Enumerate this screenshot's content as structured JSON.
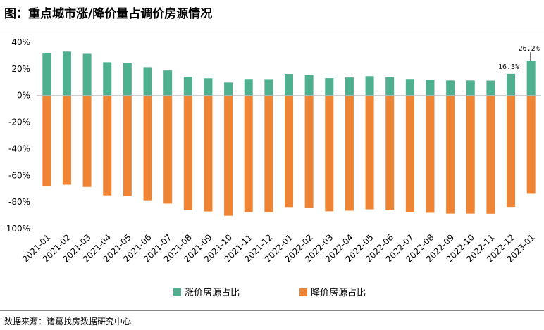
{
  "header": {
    "title": "图：重点城市涨/降价量占调价房源情况"
  },
  "footer": {
    "source": "数据来源：诸葛找房数据研究中心"
  },
  "chart_data": {
    "type": "bar",
    "stacked": "diverging",
    "categories": [
      "2021-01",
      "2021-02",
      "2021-03",
      "2021-04",
      "2021-05",
      "2021-06",
      "2021-07",
      "2021-08",
      "2021-09",
      "2021-10",
      "2021-11",
      "2021-12",
      "2022-01",
      "2022-02",
      "2022-03",
      "2022-04",
      "2022-05",
      "2022-06",
      "2022-07",
      "2022-08",
      "2022-09",
      "2022-10",
      "2022-11",
      "2022-12",
      "2023-01"
    ],
    "series": [
      {
        "name": "涨价房源占比",
        "color": "#4fb08f",
        "values": [
          32,
          33,
          31.3,
          25,
          24.5,
          21.3,
          18.8,
          14,
          12.9,
          9.7,
          12.4,
          12.3,
          16.2,
          15.4,
          13,
          13.5,
          14.5,
          13.9,
          12.4,
          11.9,
          11.3,
          11.3,
          11.2,
          16.3,
          26.2
        ]
      },
      {
        "name": "降价房源占比",
        "color": "#ef8534",
        "values": [
          -68,
          -67,
          -68.7,
          -75,
          -75.5,
          -78.7,
          -81.2,
          -86,
          -87.1,
          -90.3,
          -87.6,
          -87.7,
          -83.8,
          -84.6,
          -87,
          -86.5,
          -85.5,
          -86.1,
          -87.6,
          -88.1,
          -88.7,
          -88.7,
          -88.8,
          -83.7,
          -73.8
        ]
      }
    ],
    "data_labels": [
      {
        "category": "2022-12",
        "text": "16.3%"
      },
      {
        "category": "2023-01",
        "text": "26.2%"
      }
    ],
    "ylim": [
      -100,
      40
    ],
    "yticks": [
      40,
      20,
      0,
      -20,
      -40,
      -60,
      -80,
      -100
    ],
    "ytick_labels": [
      "40%",
      "20%",
      "0%",
      "-20%",
      "-40%",
      "-60%",
      "-80%",
      "-100%"
    ],
    "grid": false,
    "legend_position": "bottom-center"
  }
}
